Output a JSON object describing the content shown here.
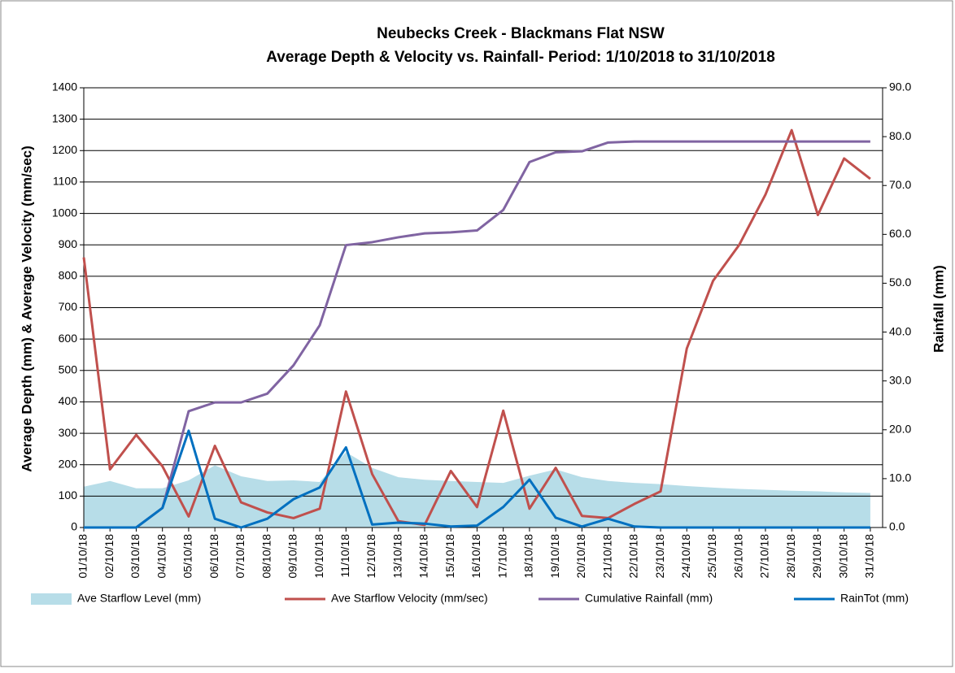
{
  "chart_data": {
    "type": "line",
    "title": "Neubecks Creek - Blackmans Flat NSW",
    "subtitle": "Average Depth & Velocity  vs. Rainfall- Period:  1/10/2018 to 31/10/2018",
    "y_label": "Average Depth (mm) & Average Velocity (mm/sec)",
    "y2_label": "Rainfall (mm)",
    "categories": [
      "01/10/18",
      "02/10/18",
      "03/10/18",
      "04/10/18",
      "05/10/18",
      "06/10/18",
      "07/10/18",
      "08/10/18",
      "09/10/18",
      "10/10/18",
      "11/10/18",
      "12/10/18",
      "13/10/18",
      "14/10/18",
      "15/10/18",
      "16/10/18",
      "17/10/18",
      "18/10/18",
      "19/10/18",
      "20/10/18",
      "21/10/18",
      "22/10/18",
      "23/10/18",
      "24/10/18",
      "25/10/18",
      "26/10/18",
      "27/10/18",
      "28/10/18",
      "29/10/18",
      "30/10/18",
      "31/10/18"
    ],
    "series": [
      {
        "name": "Ave Starflow Level (mm)",
        "color": "#b7dde8",
        "kind": "area",
        "values": [
          130,
          148,
          125,
          125,
          150,
          198,
          163,
          148,
          150,
          145,
          240,
          190,
          160,
          152,
          148,
          145,
          142,
          165,
          185,
          160,
          148,
          142,
          138,
          132,
          127,
          123,
          120,
          117,
          115,
          112,
          110
        ]
      },
      {
        "name": "Ave Starflow Velocity (mm/sec)",
        "color": "#c0504d",
        "values": [
          860,
          185,
          295,
          195,
          35,
          260,
          80,
          48,
          30,
          60,
          433,
          170,
          20,
          8,
          180,
          65,
          372,
          60,
          190,
          37,
          30,
          75,
          115,
          570,
          785,
          900,
          1060,
          1265,
          995,
          1175,
          1110
        ]
      },
      {
        "name": "Cumulative Rainfall (mm)",
        "color": "#8064a2",
        "axis": "y2",
        "values": [
          0,
          0,
          0,
          4,
          23.8,
          25.6,
          25.6,
          27.4,
          33.2,
          41.4,
          57.8,
          58.4,
          59.4,
          60.2,
          60.4,
          60.8,
          65,
          74.8,
          76.8,
          77,
          78.8,
          79,
          79,
          79,
          79,
          79,
          79,
          79,
          79,
          79,
          79
        ]
      },
      {
        "name": "RainTot (mm)",
        "color": "#0070c0",
        "axis": "y2",
        "values": [
          0,
          0,
          0,
          4,
          19.8,
          1.8,
          0,
          1.8,
          5.8,
          8.2,
          16.4,
          0.6,
          1,
          0.8,
          0.2,
          0.4,
          4.2,
          9.8,
          2,
          0.2,
          1.8,
          0.2,
          0,
          0,
          0,
          0,
          0,
          0,
          0,
          0,
          0
        ]
      }
    ],
    "ylim": [
      0,
      1400
    ],
    "yticks": [
      0,
      100,
      200,
      300,
      400,
      500,
      600,
      700,
      800,
      900,
      1000,
      1100,
      1200,
      1300,
      1400
    ],
    "y2lim": [
      0,
      90
    ],
    "y2ticks": [
      {
        "value": 0,
        "label": "0.0"
      },
      {
        "value": 10,
        "label": "10.0"
      },
      {
        "value": 20,
        "label": "20.0"
      },
      {
        "value": 30,
        "label": "30.0"
      },
      {
        "value": 40,
        "label": "40.0"
      },
      {
        "value": 50,
        "label": "50.0"
      },
      {
        "value": 60,
        "label": "60.0"
      },
      {
        "value": 70,
        "label": "70.0"
      },
      {
        "value": 80,
        "label": "80.0"
      },
      {
        "value": 90,
        "label": "90.0"
      }
    ],
    "grid": true,
    "legend": "bottom"
  }
}
